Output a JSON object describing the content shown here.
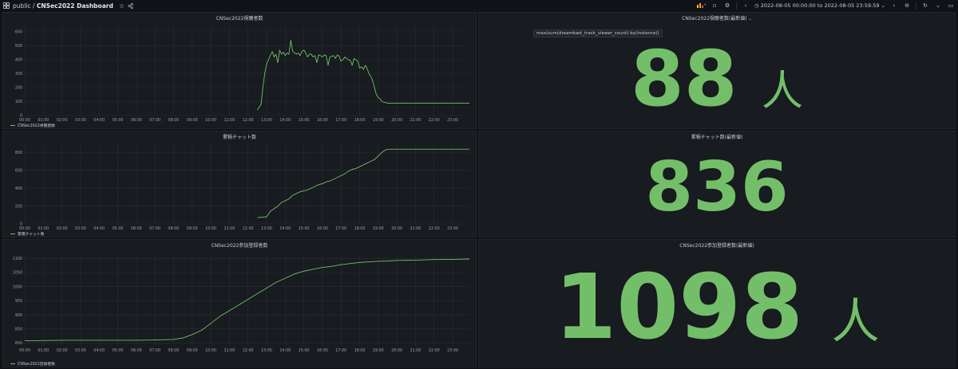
{
  "header": {
    "breadcrumb_prefix": "public",
    "breadcrumb_separator": "/",
    "dashboard_title": "CNSec2022 Dashboard",
    "star_icon": "star-icon",
    "share_icon": "share-icon",
    "time_range": "2022-08-05 00:00:00 to 2022-08-05 23:59:59"
  },
  "colors": {
    "series": "#73bf69",
    "panel_bg": "#181b1f",
    "page_bg": "#111217"
  },
  "panels": {
    "viewers_chart": {
      "title": "CNSec2022視聴者数",
      "legend": "CNSec2022視聴者数"
    },
    "chat_chart": {
      "title": "累積チャット数",
      "legend": "累積チャット数"
    },
    "registrations_chart": {
      "title": "CNSec2022参加登録者数",
      "legend": "CNSec2022登録者数"
    },
    "viewers_stat": {
      "title": "CNSec2022視聴者数(最新値)",
      "value": "88",
      "unit": "人",
      "tooltip": "max(sum(dreamkast_track_viewer_count) by(instance))"
    },
    "chat_stat": {
      "title": "累積チャット数(最新値)",
      "value": "836"
    },
    "registrations_stat": {
      "title": "CNSec2022参加登録者数(最新値)",
      "value": "1098",
      "unit": "人"
    }
  },
  "chart_data": [
    {
      "type": "line",
      "title": "CNSec2022視聴者数",
      "x_ticks": [
        "00:00",
        "01:00",
        "02:00",
        "03:00",
        "04:00",
        "05:00",
        "06:00",
        "07:00",
        "08:00",
        "09:00",
        "10:00",
        "11:00",
        "12:00",
        "13:00",
        "14:00",
        "15:00",
        "16:00",
        "17:00",
        "18:00",
        "19:00",
        "20:00",
        "21:00",
        "22:00",
        "23:00"
      ],
      "y_ticks": [
        0,
        100,
        200,
        300,
        400,
        500,
        600
      ],
      "ylim": [
        0,
        640
      ],
      "xlim": [
        0,
        23.9
      ],
      "grid": true,
      "legend_position": "bottom-left",
      "series": [
        {
          "name": "CNSec2022視聴者数",
          "x": [
            12.5,
            12.7,
            12.8,
            12.9,
            13.0,
            13.1,
            13.2,
            13.3,
            13.4,
            13.5,
            13.6,
            13.7,
            13.8,
            13.9,
            14.0,
            14.1,
            14.2,
            14.3,
            14.4,
            14.5,
            14.6,
            14.7,
            14.8,
            14.9,
            15.0,
            15.1,
            15.2,
            15.3,
            15.4,
            15.5,
            15.6,
            15.7,
            15.8,
            15.9,
            16.0,
            16.1,
            16.2,
            16.3,
            16.4,
            16.5,
            16.6,
            16.7,
            16.8,
            16.9,
            17.0,
            17.1,
            17.2,
            17.3,
            17.4,
            17.5,
            17.6,
            17.7,
            17.8,
            17.9,
            18.0,
            18.1,
            18.2,
            18.3,
            18.4,
            18.5,
            18.6,
            18.7,
            18.8,
            18.9,
            19.0,
            19.1,
            19.2,
            19.5,
            20.0,
            21.0,
            22.0,
            23.0,
            23.9
          ],
          "y": [
            40,
            80,
            200,
            300,
            370,
            400,
            430,
            460,
            420,
            440,
            380,
            470,
            440,
            455,
            430,
            450,
            440,
            540,
            460,
            450,
            440,
            450,
            430,
            460,
            470,
            450,
            420,
            440,
            440,
            420,
            430,
            380,
            435,
            430,
            420,
            435,
            430,
            360,
            420,
            425,
            430,
            410,
            435,
            425,
            390,
            400,
            420,
            410,
            400,
            395,
            360,
            410,
            400,
            390,
            340,
            350,
            330,
            360,
            340,
            300,
            280,
            250,
            200,
            150,
            130,
            120,
            100,
            88,
            88,
            88,
            88,
            88,
            88
          ]
        }
      ]
    },
    {
      "type": "line",
      "title": "累積チャット数",
      "x_ticks": [
        "00:00",
        "01:00",
        "02:00",
        "03:00",
        "04:00",
        "05:00",
        "06:00",
        "07:00",
        "08:00",
        "09:00",
        "10:00",
        "11:00",
        "12:00",
        "13:00",
        "14:00",
        "15:00",
        "16:00",
        "17:00",
        "18:00",
        "19:00",
        "20:00",
        "21:00",
        "22:00",
        "23:00"
      ],
      "y_ticks": [
        0,
        200,
        400,
        600,
        800
      ],
      "ylim": [
        0,
        900
      ],
      "xlim": [
        0,
        23.9
      ],
      "grid": true,
      "legend_position": "bottom-left",
      "series": [
        {
          "name": "累積チャット数",
          "x": [
            12.5,
            13.0,
            13.2,
            13.4,
            13.6,
            13.8,
            14.0,
            14.2,
            14.4,
            14.6,
            14.8,
            15.0,
            15.2,
            15.4,
            15.6,
            15.8,
            16.0,
            16.2,
            16.4,
            16.6,
            16.8,
            17.0,
            17.2,
            17.4,
            17.6,
            17.8,
            18.0,
            18.2,
            18.4,
            18.6,
            18.8,
            19.0,
            19.2,
            19.4,
            19.6,
            20.0,
            21.0,
            22.0,
            23.0,
            23.9
          ],
          "y": [
            70,
            80,
            140,
            170,
            200,
            240,
            260,
            280,
            320,
            340,
            360,
            370,
            380,
            400,
            420,
            440,
            450,
            470,
            480,
            500,
            520,
            540,
            560,
            590,
            610,
            620,
            640,
            660,
            680,
            700,
            720,
            760,
            800,
            830,
            836,
            836,
            836,
            836,
            836,
            836
          ]
        }
      ]
    },
    {
      "type": "line",
      "title": "CNSec2022参加登録者数",
      "x_ticks": [
        "00:00",
        "01:00",
        "02:00",
        "03:00",
        "04:00",
        "05:00",
        "06:00",
        "07:00",
        "08:00",
        "09:00",
        "10:00",
        "11:00",
        "12:00",
        "13:00",
        "14:00",
        "15:00",
        "16:00",
        "17:00",
        "18:00",
        "19:00",
        "20:00",
        "21:00",
        "22:00",
        "23:00"
      ],
      "y_ticks": [
        800,
        850,
        900,
        950,
        1000,
        1050,
        1100
      ],
      "ylim": [
        790,
        1115
      ],
      "xlim": [
        0,
        23.9
      ],
      "grid": true,
      "legend_position": "bottom-left",
      "series": [
        {
          "name": "CNSec2022登録者数",
          "x": [
            0,
            1,
            2,
            3,
            4,
            5,
            6,
            7,
            8,
            8.5,
            9,
            9.5,
            10,
            10.5,
            11,
            11.5,
            12,
            12.5,
            13,
            13.5,
            14,
            14.5,
            15,
            15.5,
            16,
            16.5,
            17,
            17.5,
            18,
            18.5,
            19,
            19.5,
            20,
            21,
            22,
            23,
            23.9
          ],
          "y": [
            808,
            809,
            810,
            810,
            810,
            810,
            810,
            811,
            813,
            818,
            830,
            845,
            870,
            895,
            915,
            935,
            955,
            975,
            995,
            1015,
            1030,
            1045,
            1055,
            1062,
            1068,
            1072,
            1078,
            1082,
            1086,
            1088,
            1090,
            1091,
            1093,
            1094,
            1096,
            1097,
            1098
          ]
        }
      ]
    }
  ]
}
